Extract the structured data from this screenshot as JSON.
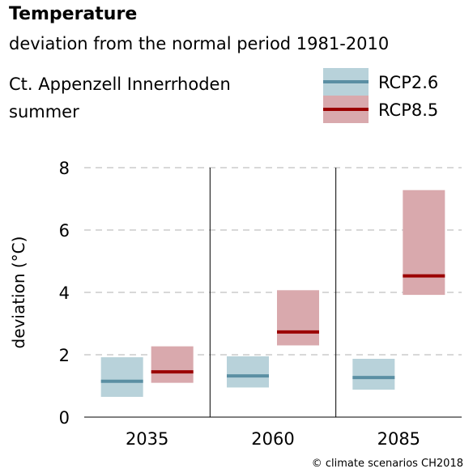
{
  "header": {
    "title": "Temperature",
    "subtitle": "deviation from the normal period 1981-2010",
    "region": "Ct. Appenzell Innerrhoden",
    "season": "summer"
  },
  "credit": "© climate scenarios CH2018",
  "colors": {
    "rcp26_box": "#b8d2da",
    "rcp26_line": "#5b8fa3",
    "rcp85_box": "#d9a9ad",
    "rcp85_line": "#9b0000",
    "grid": "#b0b0b0"
  },
  "chart_data": {
    "type": "bar",
    "ylabel": "deviation (°C)",
    "ylim": [
      0,
      8
    ],
    "yticks": [
      0,
      2,
      4,
      6,
      8
    ],
    "grid": "horizontal dashed",
    "legend_position": "top-right",
    "categories": [
      "2035",
      "2060",
      "2085"
    ],
    "series": [
      {
        "name": "RCP2.6",
        "low": [
          0.65,
          0.95,
          0.88
        ],
        "median": [
          1.15,
          1.32,
          1.27
        ],
        "high": [
          1.92,
          1.95,
          1.87
        ]
      },
      {
        "name": "RCP8.5",
        "low": [
          1.1,
          2.3,
          3.92
        ],
        "median": [
          1.45,
          2.73,
          4.53
        ],
        "high": [
          2.27,
          4.07,
          7.28
        ]
      }
    ]
  }
}
